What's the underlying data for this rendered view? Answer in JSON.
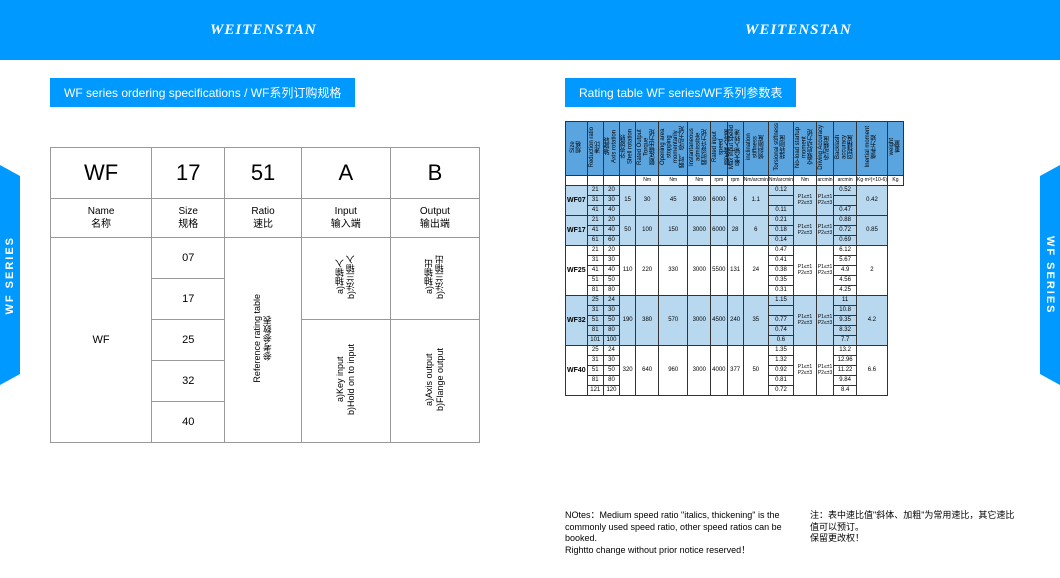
{
  "brand": "WEITENSTAN",
  "side_label": "WF SERIES",
  "left": {
    "title": "WF series ordering specifications / WF系列订购规格",
    "head": [
      "WF",
      "17",
      "51",
      "A",
      "B"
    ],
    "sub": [
      {
        "en": "Name",
        "zh": "名称"
      },
      {
        "en": "Size",
        "zh": "规格"
      },
      {
        "en": "Ratio",
        "zh": "速比"
      },
      {
        "en": "Input",
        "zh": "输入端"
      },
      {
        "en": "Output",
        "zh": "输出端"
      }
    ],
    "name_val": "WF",
    "sizes": [
      "07",
      "17",
      "25",
      "32",
      "40"
    ],
    "ratio_text": "Reference rating table\n参考参数表",
    "input_a": "a)轴输入\nb)法兰输入",
    "input_b": "a)Key input\nb)Hold on to input",
    "output_a": "a)轴输出\nb)法兰输出",
    "output_b": "a)Axis output\nb)Flange output"
  },
  "right": {
    "title": "Rating table WF series/WF系列参数表",
    "cols": [
      {
        "en": "Size",
        "zh": "规格"
      },
      {
        "en": "Reduction ratio",
        "zh": "速比"
      },
      {
        "en": "",
        "zh": "轴旋转\nAxis rotation"
      },
      {
        "en": "",
        "zh": "外壳旋转\nShell rotation"
      },
      {
        "en": "Rated Output Torque",
        "zh": "额定输出力矩"
      },
      {
        "en": "Opening area stopping momentarily",
        "zh": "瞬时、停动力矩"
      },
      {
        "en": "Instantaneous admissible",
        "zh": "瞬时容许力矩"
      },
      {
        "en": "Rated input speed",
        "zh": "额定输入转速"
      },
      {
        "en": "Max input speed",
        "zh": "最大输入转速"
      },
      {
        "en": "inclination stiffness",
        "zh": "倾斜刚度"
      },
      {
        "en": "Torsional stiffness",
        "zh": "扭转刚度"
      },
      {
        "en": "No-load startup moment",
        "zh": "空载启动力矩"
      },
      {
        "en": "Driving Accuracy",
        "zh": "传动精度"
      },
      {
        "en": "Backlash accuracy",
        "zh": "回程精度"
      },
      {
        "en": "Inertial moment",
        "zh": "惯性力矩"
      },
      {
        "en": "weight",
        "zh": "重量"
      }
    ],
    "units": [
      "",
      "",
      "",
      "",
      "Nm",
      "Nm",
      "Nm",
      "rpm",
      "rpm",
      "Nm/arcmin",
      "Nm/arcmin",
      "Nm",
      "arcmin",
      "arcmin",
      "Kg·m²(×10-6)",
      "Kg"
    ],
    "groups": [
      {
        "model": "WF07",
        "shade": true,
        "ratios": [
          [
            "21",
            "20"
          ],
          [
            "31",
            "30"
          ],
          [
            "41",
            "40"
          ]
        ],
        "vals": [
          "15",
          "30",
          "45",
          "3000",
          "6000",
          "6",
          "1.1"
        ],
        "noload": [
          "0.12",
          "",
          "0.11"
        ],
        "acc": [
          "P1≤±1\nP2≤±3",
          "P1≤±1\nP2≤±3"
        ],
        "inertia": [
          "0.52",
          "",
          "0.47"
        ],
        "weight": "0.42"
      },
      {
        "model": "WF17",
        "shade": true,
        "ratios": [
          [
            "21",
            "20"
          ],
          [
            "41",
            "40"
          ],
          [
            "61",
            "60"
          ]
        ],
        "vals": [
          "50",
          "100",
          "150",
          "3000",
          "6000",
          "28",
          "6"
        ],
        "noload": [
          "0.21",
          "0.18",
          "0.14"
        ],
        "acc": [
          "P1≤±1\nP2≤±3",
          "P1≤±1\nP2≤±3"
        ],
        "inertia": [
          "0.88",
          "0.72",
          "0.69"
        ],
        "weight": "0.85"
      },
      {
        "model": "WF25",
        "shade": false,
        "ratios": [
          [
            "21",
            "20"
          ],
          [
            "31",
            "30"
          ],
          [
            "41",
            "40"
          ],
          [
            "51",
            "50"
          ],
          [
            "81",
            "80"
          ]
        ],
        "vals": [
          "110",
          "220",
          "330",
          "3000",
          "5500",
          "131",
          "24"
        ],
        "noload": [
          "0.47",
          "0.41",
          "0.38",
          "0.35",
          "0.31"
        ],
        "acc": [
          "P1≤±1\nP2≤±3",
          "P1≤±1\nP2≤±3"
        ],
        "inertia": [
          "6.12",
          "5.67",
          "4.9",
          "4.56",
          "4.25"
        ],
        "weight": "2"
      },
      {
        "model": "WF32",
        "shade": true,
        "ratios": [
          [
            "25",
            "24"
          ],
          [
            "31",
            "30"
          ],
          [
            "51",
            "50"
          ],
          [
            "81",
            "80"
          ],
          [
            "101",
            "100"
          ]
        ],
        "vals": [
          "190",
          "380",
          "570",
          "3000",
          "4500",
          "240",
          "35"
        ],
        "noload": [
          "1.15",
          "",
          "0.77",
          "0.74",
          "0.6"
        ],
        "acc": [
          "P1≤±1\nP2≤±3",
          "P1≤±1\nP2≤±3"
        ],
        "inertia": [
          "11",
          "10.8",
          "9.35",
          "8.32",
          "7.7"
        ],
        "weight": "4.2"
      },
      {
        "model": "WF40",
        "shade": false,
        "ratios": [
          [
            "25",
            "24"
          ],
          [
            "31",
            "30"
          ],
          [
            "51",
            "50"
          ],
          [
            "81",
            "80"
          ],
          [
            "121",
            "120"
          ]
        ],
        "vals": [
          "320",
          "640",
          "960",
          "3000",
          "4000",
          "377",
          "50"
        ],
        "noload": [
          "1.35",
          "1.32",
          "0.92",
          "0.81",
          "0.72"
        ],
        "acc": [
          "P1≤±1\nP2≤±3",
          "P1≤±1\nP2≤±3"
        ],
        "inertia": [
          "13.2",
          "12.96",
          "11.22",
          "9.84",
          "8.4"
        ],
        "weight": "6.6"
      }
    ],
    "note_en": "NOtes：Medium speed ratio \"italics, thickening\" is the commonly used speed ratio, other speed ratios can be booked.\nRightto change without prior notice reserved！",
    "note_zh": "注：表中速比值\"斜体、加粗\"为常用速比，其它速比值可以预订。\n保留更改权！"
  },
  "colors": {
    "brand": "#0099ff",
    "shade": "#b8d8f0",
    "head": "#5aa4e0"
  }
}
